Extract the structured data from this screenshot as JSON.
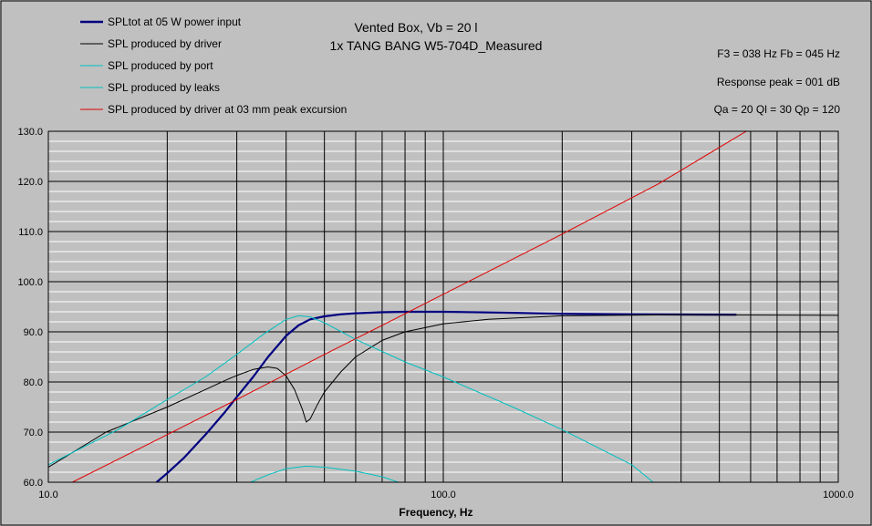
{
  "chart_data": {
    "type": "line",
    "title": "Vented Box, Vb = 20 l",
    "subtitle": "1x TANG BANG W5-704D_Measured",
    "info": [
      "F3 = 038 Hz  Fb = 045 Hz",
      "Response peak = 001 dB",
      "Qa = 20  Ql = 30  Qp = 120"
    ],
    "xlabel": "Frequency, Hz",
    "ylabel": "",
    "x_scale": "log",
    "xlim": [
      10,
      1000
    ],
    "ylim": [
      60,
      130
    ],
    "x_ticks": [
      {
        "value": 10,
        "label": "10.0"
      },
      {
        "value": 100,
        "label": "100.0"
      },
      {
        "value": 1000,
        "label": "1000.0"
      }
    ],
    "y_ticks": [
      {
        "value": 60,
        "label": "60.0"
      },
      {
        "value": 70,
        "label": "70.0"
      },
      {
        "value": 80,
        "label": "80.0"
      },
      {
        "value": 90,
        "label": "90.0"
      },
      {
        "value": 100,
        "label": "100.0"
      },
      {
        "value": 110,
        "label": "110.0"
      },
      {
        "value": 120,
        "label": "120.0"
      },
      {
        "value": 130,
        "label": "130.0"
      }
    ],
    "grid": true,
    "legend_position": "top-left",
    "series": [
      {
        "name": "SPLtot at 05 W power input",
        "color": "#000080",
        "width": 2.2,
        "points": [
          [
            18.8,
            60
          ],
          [
            20,
            61.8
          ],
          [
            22,
            64.8
          ],
          [
            25,
            69.5
          ],
          [
            28,
            74
          ],
          [
            30,
            77
          ],
          [
            33,
            81
          ],
          [
            36,
            85
          ],
          [
            40,
            89.2
          ],
          [
            43,
            91.3
          ],
          [
            46,
            92.5
          ],
          [
            50,
            93.1
          ],
          [
            55,
            93.5
          ],
          [
            60,
            93.7
          ],
          [
            70,
            93.9
          ],
          [
            80,
            94
          ],
          [
            100,
            94
          ],
          [
            150,
            93.8
          ],
          [
            200,
            93.6
          ],
          [
            300,
            93.5
          ],
          [
            550,
            93.4
          ]
        ]
      },
      {
        "name": "SPL produced by driver",
        "color": "#000000",
        "width": 1,
        "points": [
          [
            10,
            63
          ],
          [
            14,
            70
          ],
          [
            20,
            75
          ],
          [
            25,
            78.5
          ],
          [
            28,
            80.3
          ],
          [
            30,
            81.3
          ],
          [
            33,
            82.5
          ],
          [
            36,
            83
          ],
          [
            38,
            82.7
          ],
          [
            40,
            81.2
          ],
          [
            42,
            78.5
          ],
          [
            44,
            74.5
          ],
          [
            45,
            72
          ],
          [
            46,
            72.6
          ],
          [
            48,
            75.5
          ],
          [
            50,
            78
          ],
          [
            55,
            82
          ],
          [
            60,
            85
          ],
          [
            70,
            88.3
          ],
          [
            80,
            90
          ],
          [
            100,
            91.6
          ],
          [
            130,
            92.5
          ],
          [
            200,
            93.2
          ],
          [
            400,
            93.4
          ],
          [
            1000,
            93.3
          ]
        ]
      },
      {
        "name": "SPL produced by port",
        "color": "#00c0c0",
        "width": 1,
        "points": [
          [
            10,
            63.5
          ],
          [
            15,
            70.5
          ],
          [
            20,
            76.5
          ],
          [
            25,
            81
          ],
          [
            30,
            85.5
          ],
          [
            35,
            89.5
          ],
          [
            40,
            92.5
          ],
          [
            43,
            93.2
          ],
          [
            46,
            93
          ],
          [
            50,
            91.8
          ],
          [
            60,
            88.5
          ],
          [
            80,
            84
          ],
          [
            100,
            81
          ],
          [
            150,
            75
          ],
          [
            200,
            70.5
          ],
          [
            300,
            63.5
          ],
          [
            340,
            60
          ]
        ]
      },
      {
        "name": "SPL produced by leaks",
        "color": "#00c0c0",
        "width": 1,
        "points": [
          [
            32.5,
            60
          ],
          [
            36,
            61.5
          ],
          [
            40,
            62.7
          ],
          [
            45,
            63.2
          ],
          [
            50,
            63
          ],
          [
            60,
            62.2
          ],
          [
            70,
            61.1
          ],
          [
            77,
            60
          ]
        ]
      },
      {
        "name": "SPL produced by driver at 03 mm peak excursion",
        "color": "#e00000",
        "width": 1,
        "points": [
          [
            11.5,
            60
          ],
          [
            20,
            69.5
          ],
          [
            30,
            76.5
          ],
          [
            50,
            85.5
          ],
          [
            70,
            91.3
          ],
          [
            100,
            97.5
          ],
          [
            200,
            109.5
          ],
          [
            350,
            119.5
          ],
          [
            585,
            130
          ]
        ]
      }
    ]
  }
}
